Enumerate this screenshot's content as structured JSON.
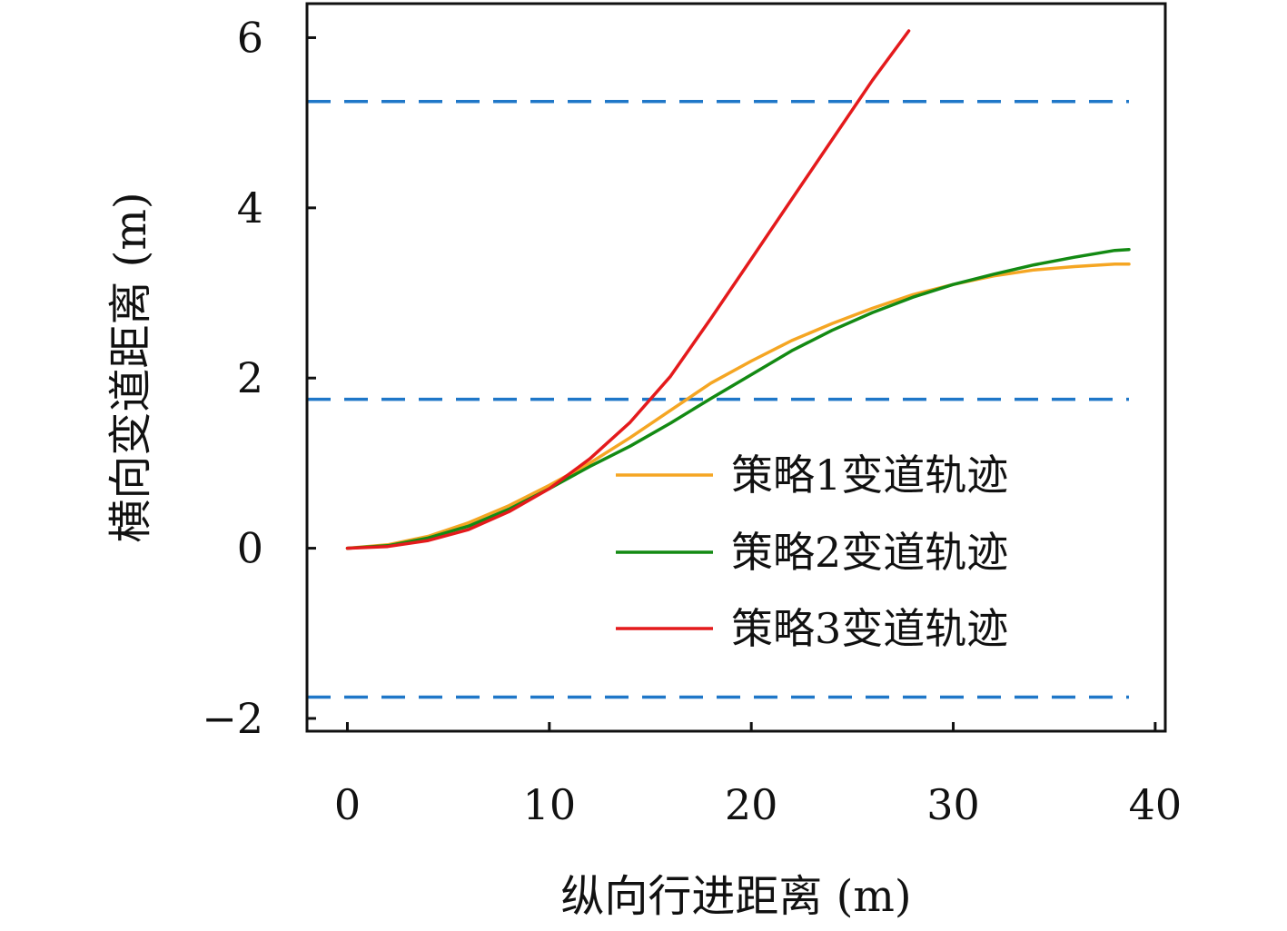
{
  "chart_data": {
    "type": "line",
    "xlabel": "纵向行进距离 (m)",
    "ylabel": "横向变道距离 (m)",
    "xlim": [
      -2,
      40.5
    ],
    "ylim": [
      -2.15,
      6.4
    ],
    "xticks": [
      0,
      10,
      20,
      30,
      40
    ],
    "yticks": [
      -2,
      0,
      2,
      4,
      6
    ],
    "xtick_labels": [
      "0",
      "10",
      "20",
      "30",
      "40"
    ],
    "ytick_labels": [
      "−2",
      "0",
      "2",
      "4",
      "6"
    ],
    "grid": false,
    "legend_position": "lower-right",
    "lane_lines": {
      "color": "#1f77c8",
      "style": "dashed",
      "y": [
        -1.75,
        1.75,
        5.25
      ]
    },
    "series": [
      {
        "name": "策略1变道轨迹",
        "color": "#f5a623",
        "x": [
          0,
          2,
          4,
          6,
          8,
          10,
          12,
          14,
          16,
          18,
          20,
          22,
          24,
          26,
          28,
          30,
          32,
          34,
          36,
          38,
          38.7
        ],
        "y": [
          0,
          0.04,
          0.14,
          0.3,
          0.5,
          0.74,
          1.0,
          1.3,
          1.62,
          1.94,
          2.2,
          2.44,
          2.64,
          2.82,
          2.98,
          3.1,
          3.2,
          3.27,
          3.31,
          3.34,
          3.34
        ]
      },
      {
        "name": "策略2变道轨迹",
        "color": "#138a13",
        "x": [
          0,
          2,
          4,
          6,
          8,
          10,
          12,
          14,
          16,
          18,
          20,
          22,
          24,
          26,
          28,
          30,
          32,
          34,
          36,
          38,
          38.7
        ],
        "y": [
          0,
          0.03,
          0.12,
          0.26,
          0.46,
          0.7,
          0.96,
          1.2,
          1.47,
          1.76,
          2.04,
          2.32,
          2.56,
          2.77,
          2.95,
          3.1,
          3.22,
          3.33,
          3.42,
          3.5,
          3.51
        ]
      },
      {
        "name": "策略3变道轨迹",
        "color": "#e41a1c",
        "x": [
          0,
          2,
          4,
          6,
          8,
          10,
          12,
          14,
          16,
          18,
          20,
          22,
          24,
          26,
          27.8
        ],
        "y": [
          0,
          0.02,
          0.09,
          0.22,
          0.43,
          0.7,
          1.05,
          1.48,
          2.02,
          2.7,
          3.4,
          4.1,
          4.8,
          5.5,
          6.08
        ]
      }
    ]
  }
}
